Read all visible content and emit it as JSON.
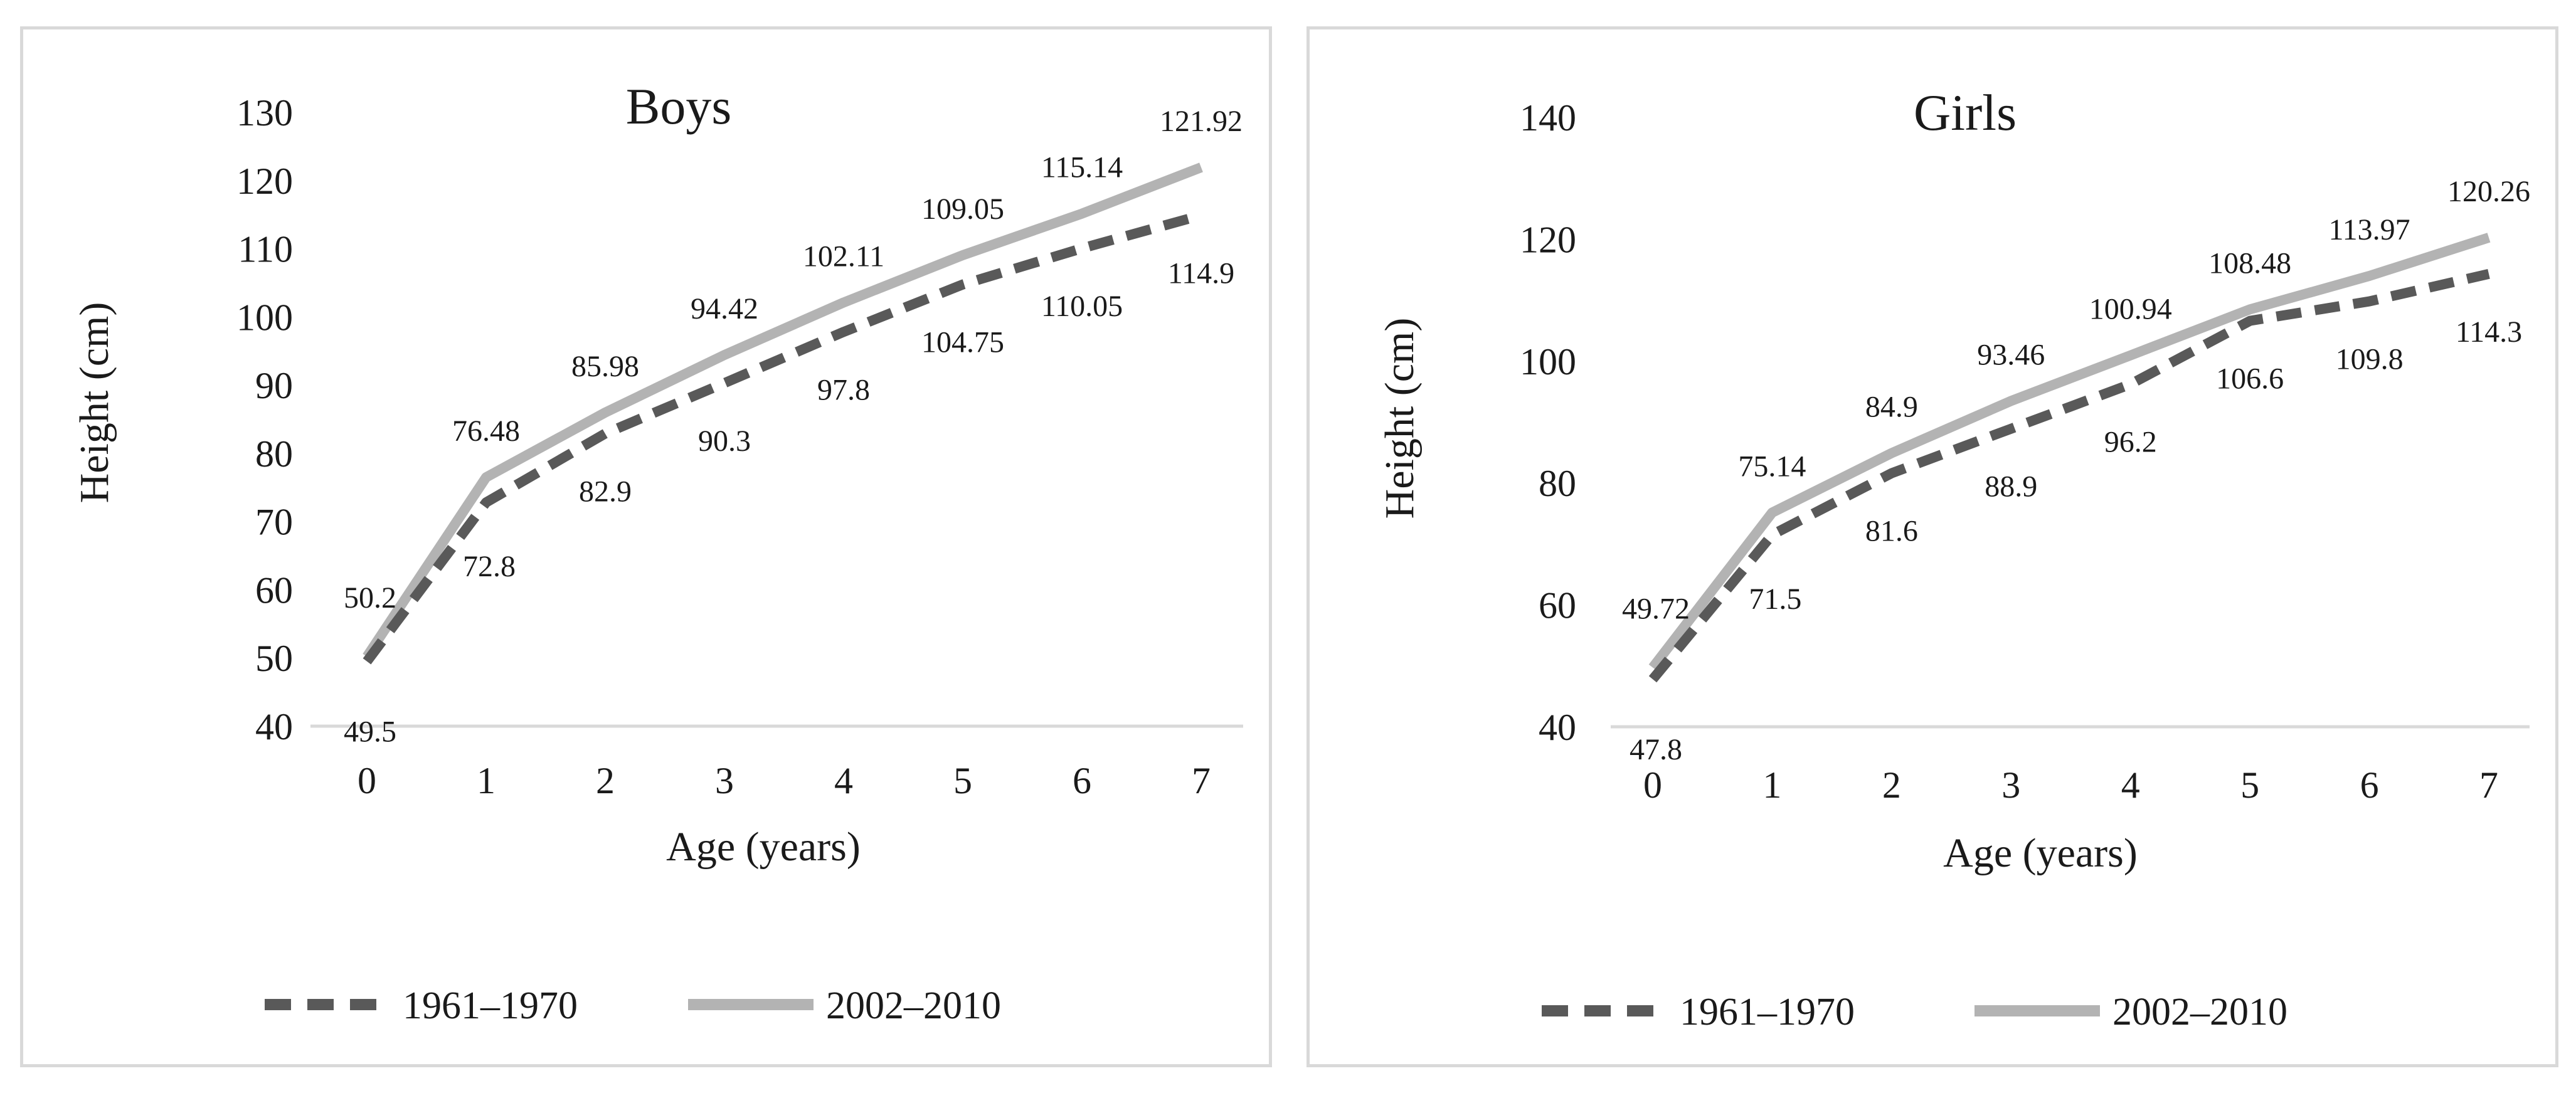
{
  "charts": [
    {
      "id": "boys",
      "layout": {
        "ymin": 40,
        "ymax": 130,
        "ystep": 10
      },
      "chart_data": {
        "type": "line",
        "title": "Boys",
        "xlabel": "Age (years)",
        "ylabel": "Height  (cm)",
        "x": [
          0,
          1,
          2,
          3,
          4,
          5,
          6,
          7
        ],
        "ylim": [
          40,
          130
        ],
        "grid": false,
        "legend": "bottom",
        "series": [
          {
            "name": "1961–1970",
            "style": "dashed",
            "color": "#595959",
            "values": [
              49.5,
              72.8,
              82.9,
              90.3,
              97.8,
              104.75,
              110.05,
              114.9
            ]
          },
          {
            "name": "2002–2010",
            "style": "solid",
            "color": "#b3b3b3",
            "values": [
              50.2,
              76.48,
              85.98,
              94.42,
              102.11,
              109.05,
              115.14,
              121.92
            ]
          }
        ]
      }
    },
    {
      "id": "girls",
      "layout": {
        "ymin": 40,
        "ymax": 140,
        "ystep": 20
      },
      "chart_data": {
        "type": "line",
        "title": "Girls",
        "xlabel": "Age (years)",
        "ylabel": "Height  (cm)",
        "x": [
          0,
          1,
          2,
          3,
          4,
          5,
          6,
          7
        ],
        "ylim": [
          40,
          140
        ],
        "grid": false,
        "legend": "bottom",
        "series": [
          {
            "name": "1961–1970",
            "style": "dashed",
            "color": "#595959",
            "values": [
              47.8,
              71.5,
              81.6,
              88.9,
              96.2,
              106.6,
              109.8,
              114.3
            ]
          },
          {
            "name": "2002–2010",
            "style": "solid",
            "color": "#b3b3b3",
            "values": [
              49.72,
              75.14,
              84.9,
              93.46,
              100.94,
              108.48,
              113.97,
              120.26
            ]
          }
        ]
      }
    }
  ]
}
